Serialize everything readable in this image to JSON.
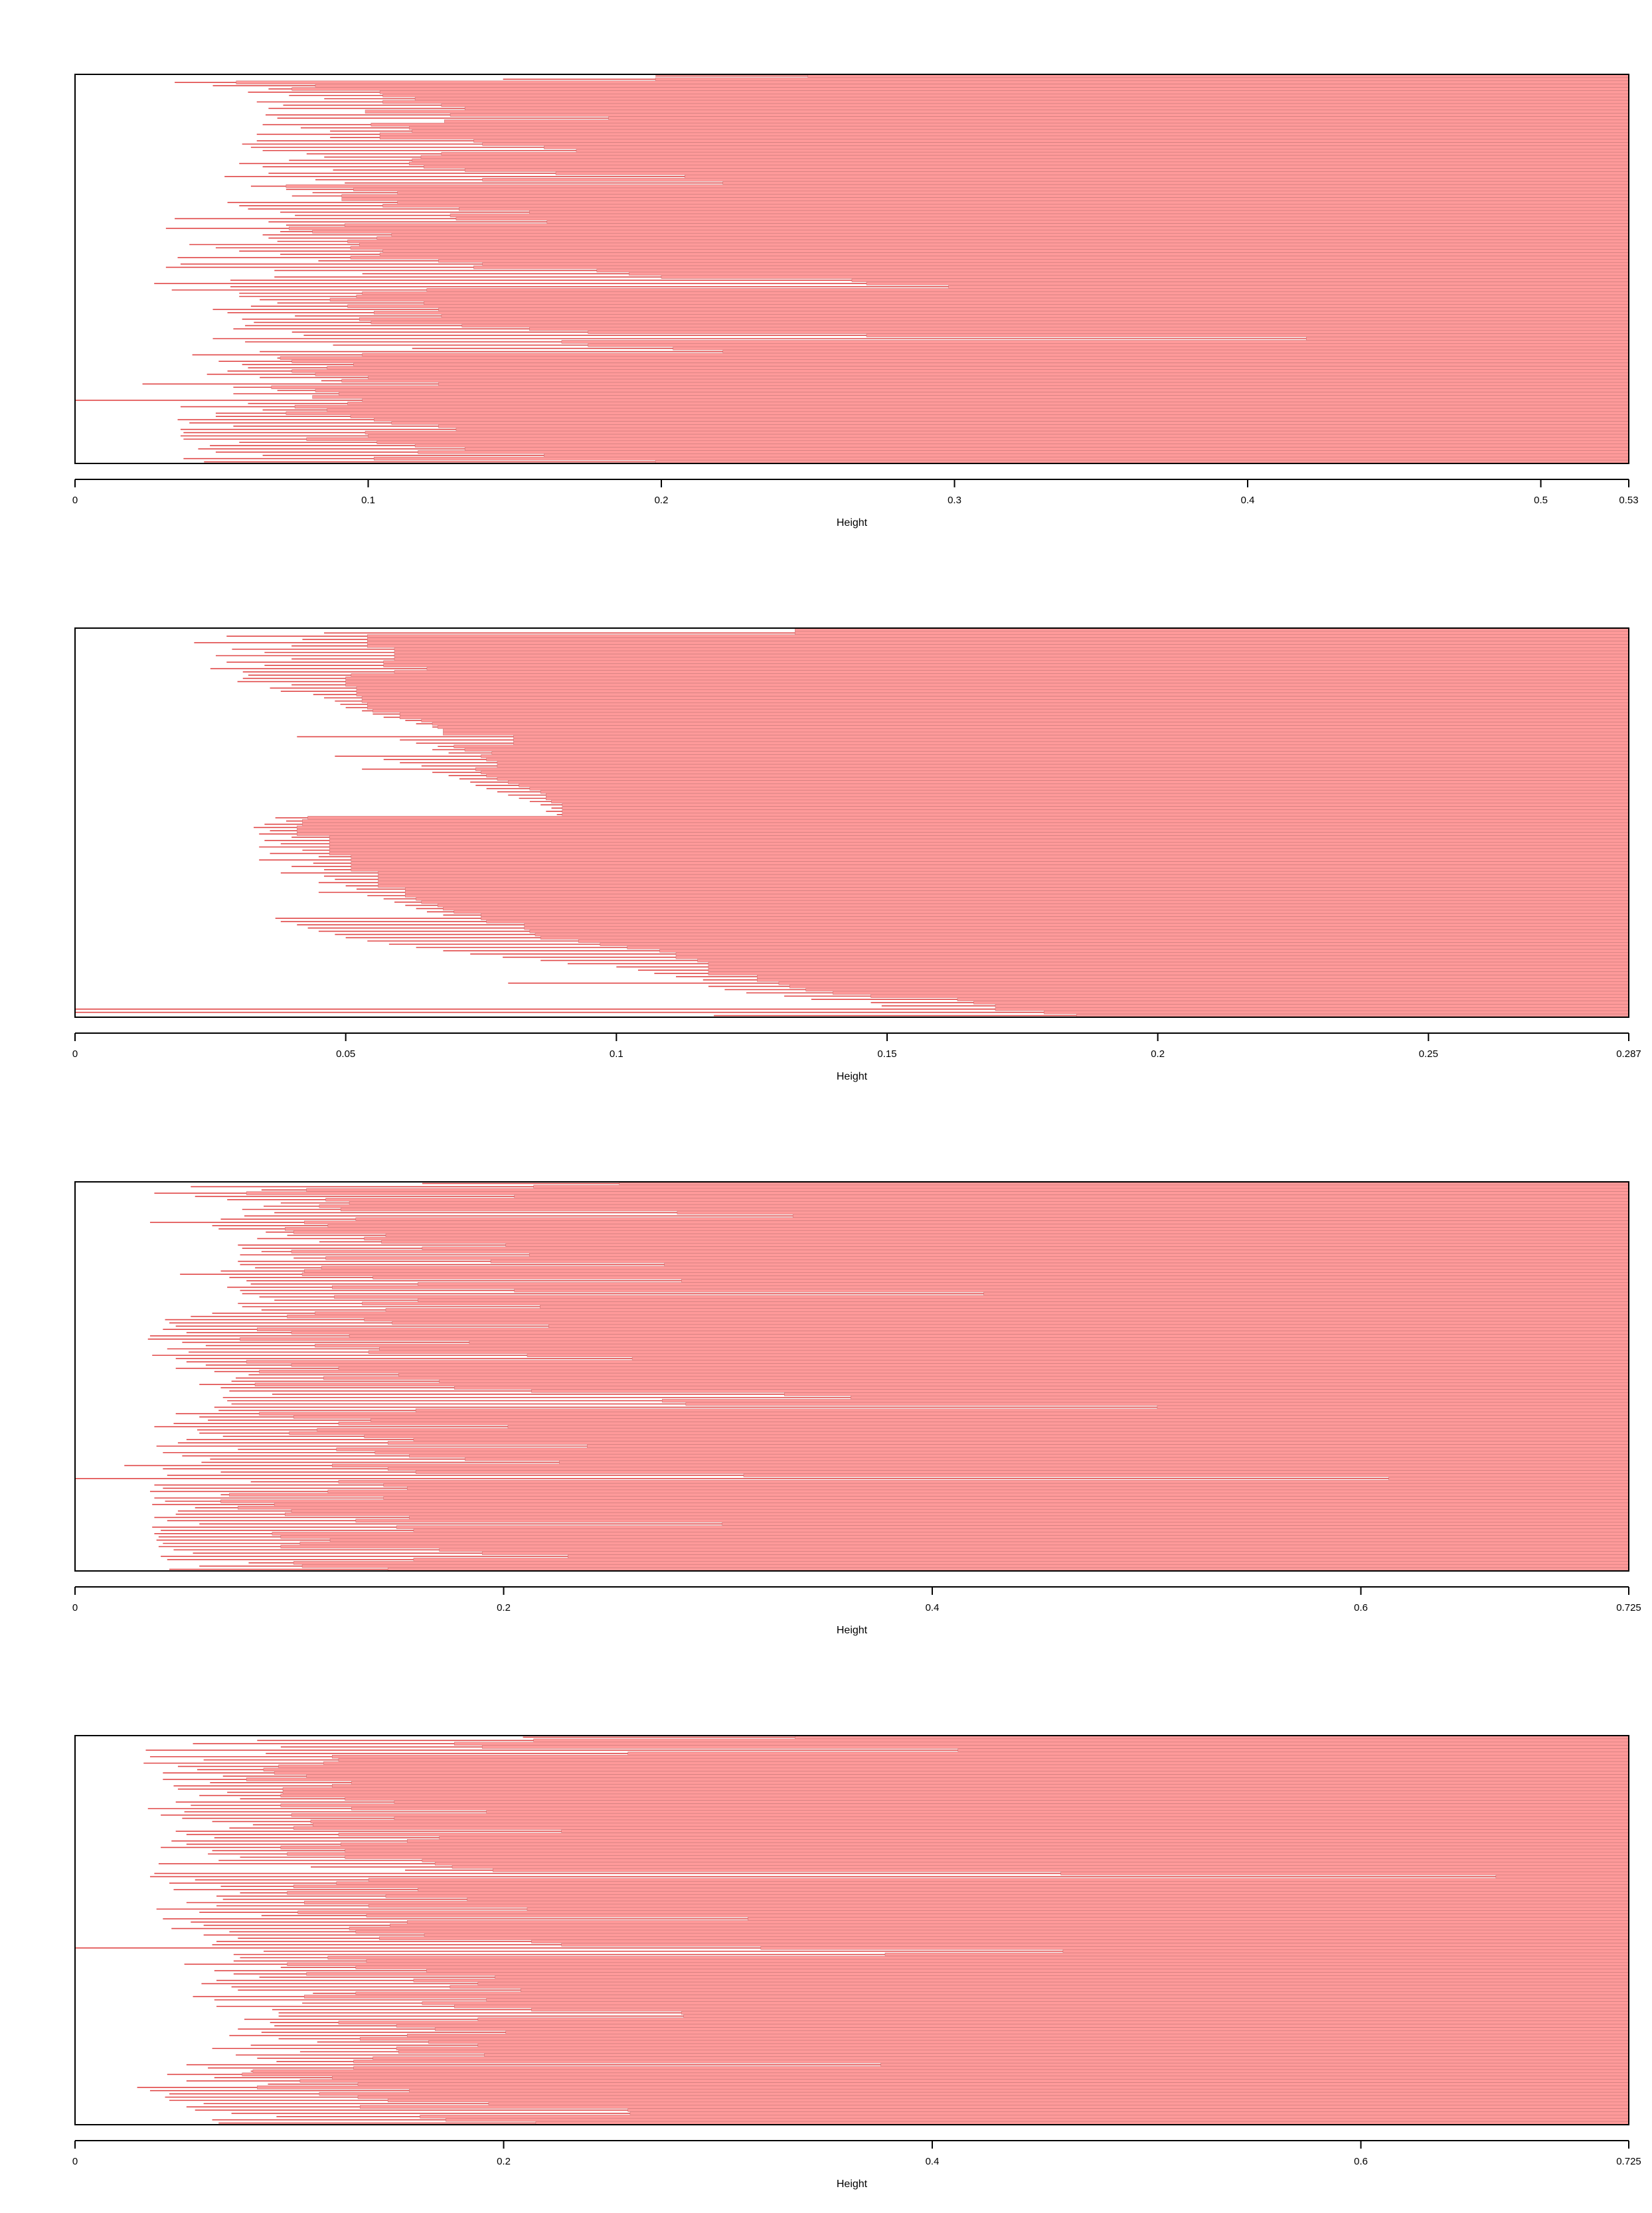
{
  "colors": {
    "bar_fill": "#ff9a9a",
    "bar_edge": "#e04848",
    "divider": "#c77a7a",
    "frame": "#000000",
    "background": "#ffffff"
  },
  "chart_data": [
    {
      "type": "bar",
      "orientation": "horizontal",
      "title": "",
      "xlabel": "Height",
      "ylabel": "",
      "xlim": [
        0,
        0.53
      ],
      "xticks": [
        0,
        0.1,
        0.2,
        0.3,
        0.4,
        0.5,
        0.53
      ],
      "xtick_labels": [
        "0",
        "0.1",
        "0.2",
        "0.3",
        "0.4",
        "0.5",
        "0.53"
      ],
      "grid": false,
      "legend": "none",
      "n_bars": 120,
      "bar_starts": [
        0.198,
        0.146,
        0.034,
        0.047,
        0.066,
        0.059,
        0.073,
        0.085,
        0.062,
        0.071,
        0.066,
        0.099,
        0.065,
        0.069,
        0.126,
        0.064,
        0.077,
        0.087,
        0.062,
        0.087,
        0.062,
        0.057,
        0.06,
        0.064,
        0.079,
        0.085,
        0.073,
        0.056,
        0.064,
        0.088,
        0.066,
        0.051,
        0.082,
        0.092,
        0.06,
        0.072,
        0.081,
        0.074,
        0.091,
        0.052,
        0.056,
        0.059,
        0.07,
        0.075,
        0.034,
        0.066,
        0.072,
        0.031,
        0.07,
        0.064,
        0.066,
        0.069,
        0.039,
        0.048,
        0.056,
        0.07,
        0.035,
        0.083,
        0.036,
        0.031,
        0.068,
        0.098,
        0.068,
        0.053,
        0.027,
        0.053,
        0.033,
        0.056,
        0.056,
        0.063,
        0.069,
        0.06,
        0.047,
        0.052,
        0.075,
        0.057,
        0.061,
        0.058,
        0.054,
        0.074,
        0.078,
        0.047,
        0.058,
        0.088,
        0.115,
        0.063,
        0.04,
        0.069,
        0.049,
        0.057,
        0.059,
        0.052,
        0.045,
        0.063,
        0.084,
        0.023,
        0.054,
        0.069,
        0.054,
        0.083,
        0.0,
        0.059,
        0.036,
        0.064,
        0.048,
        0.048,
        0.035,
        0.039,
        0.054,
        0.036,
        0.037,
        0.036,
        0.037,
        0.056,
        0.046,
        0.042,
        0.048,
        0.064,
        0.037,
        0.044
      ],
      "bar_ends": [
        0.25,
        0.198,
        0.055,
        0.082,
        0.074,
        0.104,
        0.105,
        0.116,
        0.105,
        0.125,
        0.133,
        0.099,
        0.128,
        0.182,
        0.126,
        0.101,
        0.114,
        0.115,
        0.104,
        0.104,
        0.136,
        0.139,
        0.16,
        0.171,
        0.125,
        0.118,
        0.115,
        0.114,
        0.119,
        0.133,
        0.164,
        0.208,
        0.139,
        0.221,
        0.072,
        0.095,
        0.11,
        0.091,
        0.091,
        0.11,
        0.105,
        0.131,
        0.155,
        0.128,
        0.13,
        0.161,
        0.092,
        0.073,
        0.081,
        0.108,
        0.103,
        0.093,
        0.097,
        0.094,
        0.105,
        0.104,
        0.094,
        0.124,
        0.139,
        0.136,
        0.178,
        0.189,
        0.2,
        0.265,
        0.27,
        0.298,
        0.12,
        0.098,
        0.096,
        0.087,
        0.119,
        0.093,
        0.124,
        0.102,
        0.125,
        0.097,
        0.101,
        0.132,
        0.155,
        0.175,
        0.27,
        0.42,
        0.166,
        0.175,
        0.204,
        0.221,
        0.098,
        0.07,
        0.074,
        0.095,
        0.086,
        0.074,
        0.082,
        0.1,
        0.091,
        0.124,
        0.067,
        0.082,
        0.09,
        0.081,
        0.098,
        0.093,
        0.075,
        0.086,
        0.072,
        0.094,
        0.102,
        0.108,
        0.124,
        0.13,
        0.099,
        0.1,
        0.079,
        0.103,
        0.116,
        0.133,
        0.117,
        0.16,
        0.102,
        0.198
      ]
    },
    {
      "type": "bar",
      "orientation": "horizontal",
      "title": "",
      "xlabel": "Height",
      "ylabel": "",
      "xlim": [
        0,
        0.287
      ],
      "xticks": [
        0,
        0.05,
        0.1,
        0.15,
        0.2,
        0.25,
        0.287
      ],
      "xtick_labels": [
        "0",
        "0.05",
        "0.1",
        "0.15",
        "0.2",
        "0.25",
        "0.287"
      ],
      "grid": false,
      "legend": "none",
      "n_bars": 120,
      "bar_starts": [
        0.133,
        0.046,
        0.028,
        0.042,
        0.022,
        0.04,
        0.029,
        0.035,
        0.026,
        0.04,
        0.028,
        0.035,
        0.025,
        0.031,
        0.032,
        0.031,
        0.03,
        0.04,
        0.036,
        0.038,
        0.044,
        0.046,
        0.048,
        0.049,
        0.05,
        0.053,
        0.055,
        0.057,
        0.061,
        0.063,
        0.066,
        0.069,
        0.07,
        0.041,
        0.06,
        0.063,
        0.067,
        0.066,
        0.069,
        0.048,
        0.057,
        0.06,
        0.064,
        0.053,
        0.066,
        0.069,
        0.071,
        0.073,
        0.074,
        0.076,
        0.078,
        0.08,
        0.082,
        0.084,
        0.086,
        0.088,
        0.087,
        0.089,
        0.037,
        0.039,
        0.035,
        0.033,
        0.036,
        0.034,
        0.04,
        0.035,
        0.038,
        0.034,
        0.042,
        0.036,
        0.045,
        0.034,
        0.044,
        0.04,
        0.046,
        0.038,
        0.046,
        0.048,
        0.045,
        0.05,
        0.052,
        0.045,
        0.054,
        0.057,
        0.059,
        0.061,
        0.063,
        0.065,
        0.068,
        0.037,
        0.038,
        0.041,
        0.043,
        0.045,
        0.048,
        0.05,
        0.054,
        0.058,
        0.063,
        0.068,
        0.073,
        0.079,
        0.086,
        0.091,
        0.1,
        0.104,
        0.107,
        0.111,
        0.116,
        0.08,
        0.117,
        0.12,
        0.124,
        0.131,
        0.136,
        0.147,
        0.149,
        0.0,
        0.0,
        0.118
      ],
      "bar_ends": [
        0.133,
        0.133,
        0.054,
        0.054,
        0.054,
        0.054,
        0.059,
        0.059,
        0.059,
        0.059,
        0.057,
        0.057,
        0.065,
        0.059,
        0.051,
        0.05,
        0.05,
        0.05,
        0.052,
        0.052,
        0.052,
        0.053,
        0.053,
        0.054,
        0.054,
        0.055,
        0.06,
        0.06,
        0.064,
        0.066,
        0.067,
        0.068,
        0.068,
        0.081,
        0.081,
        0.081,
        0.07,
        0.072,
        0.077,
        0.075,
        0.076,
        0.078,
        0.078,
        0.074,
        0.075,
        0.076,
        0.078,
        0.08,
        0.082,
        0.084,
        0.086,
        0.087,
        0.087,
        0.088,
        0.09,
        0.09,
        0.09,
        0.09,
        0.043,
        0.042,
        0.042,
        0.041,
        0.041,
        0.041,
        0.047,
        0.047,
        0.047,
        0.047,
        0.047,
        0.047,
        0.051,
        0.051,
        0.051,
        0.051,
        0.051,
        0.056,
        0.056,
        0.056,
        0.056,
        0.056,
        0.061,
        0.061,
        0.061,
        0.063,
        0.064,
        0.067,
        0.068,
        0.07,
        0.075,
        0.075,
        0.076,
        0.083,
        0.083,
        0.084,
        0.085,
        0.086,
        0.093,
        0.097,
        0.102,
        0.108,
        0.111,
        0.111,
        0.115,
        0.117,
        0.117,
        0.117,
        0.117,
        0.126,
        0.126,
        0.13,
        0.132,
        0.135,
        0.14,
        0.147,
        0.163,
        0.166,
        0.17,
        0.17,
        0.179,
        0.185
      ]
    },
    {
      "type": "bar",
      "orientation": "horizontal",
      "title": "",
      "xlabel": "Height",
      "ylabel": "",
      "xlim": [
        0,
        0.725
      ],
      "xticks": [
        0,
        0.2,
        0.4,
        0.6,
        0.725
      ],
      "xtick_labels": [
        "0",
        "0.2",
        "0.4",
        "0.6",
        "0.725"
      ],
      "grid": false,
      "legend": "none",
      "n_bars": 120,
      "bar_starts": [
        0.162,
        0.054,
        0.087,
        0.037,
        0.056,
        0.071,
        0.096,
        0.088,
        0.078,
        0.093,
        0.079,
        0.068,
        0.035,
        0.064,
        0.067,
        0.089,
        0.099,
        0.085,
        0.114,
        0.076,
        0.078,
        0.087,
        0.077,
        0.102,
        0.076,
        0.077,
        0.084,
        0.068,
        0.049,
        0.072,
        0.08,
        0.082,
        0.071,
        0.077,
        0.078,
        0.086,
        0.093,
        0.076,
        0.078,
        0.087,
        0.064,
        0.054,
        0.042,
        0.044,
        0.047,
        0.041,
        0.052,
        0.035,
        0.034,
        0.05,
        0.061,
        0.043,
        0.053,
        0.036,
        0.047,
        0.052,
        0.061,
        0.047,
        0.065,
        0.081,
        0.075,
        0.073,
        0.058,
        0.068,
        0.072,
        0.092,
        0.069,
        0.071,
        0.073,
        0.065,
        0.067,
        0.047,
        0.058,
        0.062,
        0.046,
        0.037,
        0.057,
        0.058,
        0.069,
        0.052,
        0.048,
        0.038,
        0.076,
        0.041,
        0.05,
        0.063,
        0.059,
        0.023,
        0.041,
        0.068,
        0.043,
        0.0,
        0.082,
        0.037,
        0.041,
        0.035,
        0.068,
        0.037,
        0.042,
        0.036,
        0.056,
        0.048,
        0.047,
        0.037,
        0.043,
        0.058,
        0.036,
        0.04,
        0.037,
        0.039,
        0.038,
        0.041,
        0.039,
        0.046,
        0.055,
        0.04,
        0.043,
        0.081,
        0.058,
        0.044
      ],
      "bar_ends": [
        0.254,
        0.214,
        0.108,
        0.08,
        0.205,
        0.117,
        0.128,
        0.114,
        0.124,
        0.281,
        0.335,
        0.131,
        0.107,
        0.118,
        0.098,
        0.102,
        0.145,
        0.135,
        0.143,
        0.201,
        0.162,
        0.101,
        0.212,
        0.117,
        0.194,
        0.275,
        0.115,
        0.107,
        0.106,
        0.139,
        0.283,
        0.16,
        0.12,
        0.205,
        0.424,
        0.121,
        0.16,
        0.134,
        0.217,
        0.145,
        0.112,
        0.099,
        0.135,
        0.148,
        0.221,
        0.085,
        0.101,
        0.128,
        0.077,
        0.184,
        0.112,
        0.142,
        0.137,
        0.211,
        0.26,
        0.08,
        0.101,
        0.123,
        0.086,
        0.151,
        0.116,
        0.17,
        0.084,
        0.177,
        0.213,
        0.331,
        0.362,
        0.274,
        0.285,
        0.505,
        0.159,
        0.086,
        0.102,
        0.138,
        0.123,
        0.202,
        0.113,
        0.1,
        0.135,
        0.158,
        0.146,
        0.239,
        0.122,
        0.14,
        0.156,
        0.182,
        0.226,
        0.12,
        0.146,
        0.159,
        0.312,
        0.613,
        0.123,
        0.144,
        0.155,
        0.118,
        0.072,
        0.144,
        0.068,
        0.093,
        0.076,
        0.101,
        0.098,
        0.156,
        0.131,
        0.302,
        0.15,
        0.158,
        0.092,
        0.096,
        0.119,
        0.105,
        0.096,
        0.17,
        0.19,
        0.23,
        0.158,
        0.102,
        0.106,
        0.146
      ]
    },
    {
      "type": "bar",
      "orientation": "horizontal",
      "title": "",
      "xlabel": "Height",
      "ylabel": "",
      "xlim": [
        0,
        0.725
      ],
      "xticks": [
        0,
        0.2,
        0.4,
        0.6,
        0.725
      ],
      "xtick_labels": [
        "0",
        "0.2",
        "0.4",
        "0.6",
        "0.725"
      ],
      "grid": false,
      "legend": "none",
      "n_bars": 120,
      "bar_starts": [
        0.209,
        0.085,
        0.055,
        0.096,
        0.033,
        0.089,
        0.035,
        0.06,
        0.032,
        0.048,
        0.057,
        0.041,
        0.069,
        0.041,
        0.063,
        0.046,
        0.048,
        0.071,
        0.058,
        0.077,
        0.047,
        0.054,
        0.034,
        0.051,
        0.04,
        0.05,
        0.064,
        0.083,
        0.072,
        0.047,
        0.052,
        0.065,
        0.045,
        0.052,
        0.04,
        0.064,
        0.062,
        0.077,
        0.067,
        0.039,
        0.11,
        0.154,
        0.037,
        0.035,
        0.056,
        0.044,
        0.068,
        0.046,
        0.077,
        0.066,
        0.069,
        0.052,
        0.066,
        0.038,
        0.058,
        0.087,
        0.041,
        0.054,
        0.06,
        0.045,
        0.072,
        0.06,
        0.076,
        0.066,
        0.064,
        0.0,
        0.088,
        0.074,
        0.077,
        0.074,
        0.051,
        0.096,
        0.065,
        0.074,
        0.086,
        0.066,
        0.059,
        0.073,
        0.076,
        0.111,
        0.055,
        0.065,
        0.106,
        0.066,
        0.092,
        0.095,
        0.095,
        0.079,
        0.091,
        0.093,
        0.076,
        0.087,
        0.072,
        0.095,
        0.113,
        0.082,
        0.064,
        0.105,
        0.075,
        0.085,
        0.094,
        0.052,
        0.062,
        0.082,
        0.043,
        0.065,
        0.052,
        0.09,
        0.029,
        0.035,
        0.044,
        0.042,
        0.044,
        0.06,
        0.052,
        0.056,
        0.073,
        0.094,
        0.064,
        0.067
      ],
      "bar_ends": [
        0.336,
        0.214,
        0.177,
        0.19,
        0.412,
        0.258,
        0.12,
        0.123,
        0.116,
        0.095,
        0.088,
        0.093,
        0.108,
        0.08,
        0.129,
        0.12,
        0.097,
        0.097,
        0.096,
        0.126,
        0.149,
        0.096,
        0.129,
        0.192,
        0.101,
        0.149,
        0.11,
        0.111,
        0.102,
        0.227,
        0.123,
        0.17,
        0.155,
        0.124,
        0.096,
        0.126,
        0.099,
        0.126,
        0.162,
        0.168,
        0.176,
        0.195,
        0.46,
        0.663,
        0.137,
        0.122,
        0.102,
        0.16,
        0.099,
        0.145,
        0.183,
        0.107,
        0.137,
        0.211,
        0.104,
        0.136,
        0.314,
        0.155,
        0.147,
        0.128,
        0.131,
        0.163,
        0.142,
        0.213,
        0.227,
        0.32,
        0.461,
        0.378,
        0.118,
        0.136,
        0.099,
        0.131,
        0.164,
        0.108,
        0.196,
        0.158,
        0.188,
        0.175,
        0.208,
        0.131,
        0.107,
        0.192,
        0.162,
        0.177,
        0.213,
        0.283,
        0.284,
        0.188,
        0.123,
        0.15,
        0.168,
        0.201,
        0.155,
        0.133,
        0.165,
        0.188,
        0.15,
        0.151,
        0.191,
        0.139,
        0.13,
        0.376,
        0.13,
        0.083,
        0.078,
        0.12,
        0.105,
        0.132,
        0.085,
        0.156,
        0.114,
        0.132,
        0.146,
        0.193,
        0.133,
        0.258,
        0.259,
        0.161,
        0.173,
        0.215
      ]
    }
  ]
}
